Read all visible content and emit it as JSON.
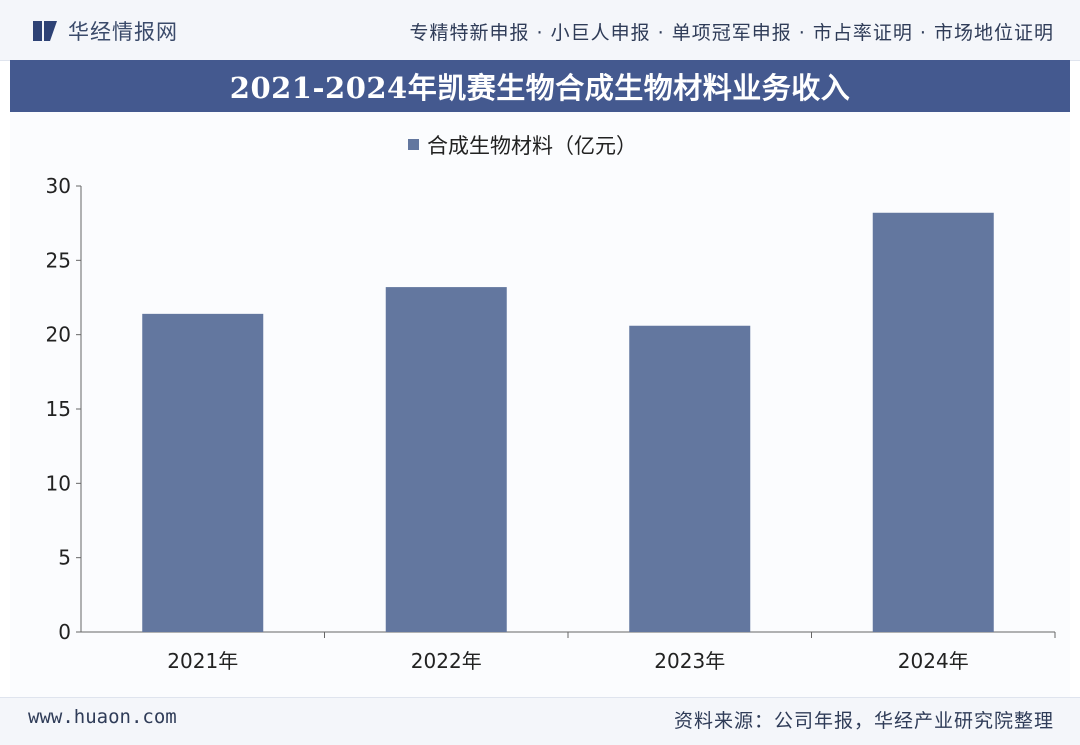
{
  "header": {
    "logo_text": "华经情报网",
    "logo_icon": "huajing-logo-icon",
    "services": "专精特新申报 · 小巨人申报 · 单项冠军申报 · 市占率证明 · 市场地位证明"
  },
  "footer": {
    "url": "www.huaon.com",
    "source": "资料来源：公司年报，华经产业研究院整理"
  },
  "colors": {
    "bar": "#63779f",
    "title_bg": "#44598f",
    "axis": "#666666"
  },
  "chart_data": {
    "type": "bar",
    "title": "2021-2024年凯赛生物合成生物材料业务收入",
    "categories": [
      "2021年",
      "2022年",
      "2023年",
      "2024年"
    ],
    "series": [
      {
        "name": "合成生物材料（亿元）",
        "values": [
          21.4,
          23.2,
          20.6,
          28.2
        ]
      }
    ],
    "ylim": [
      0,
      30
    ],
    "yticks": [
      0,
      5,
      10,
      15,
      20,
      25,
      30
    ],
    "grid": false,
    "legend": "top-center",
    "xlabel": "",
    "ylabel": ""
  }
}
